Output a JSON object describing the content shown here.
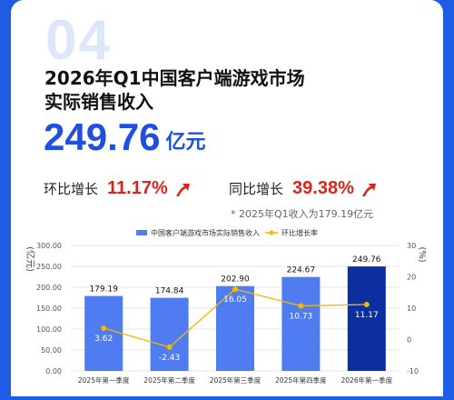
{
  "badge_number": "04",
  "title_line1": "2026年Q1中国客户端游戏市场",
  "title_line2": "实际销售收入",
  "headline_value": "249.76",
  "headline_unit": "亿元",
  "qoq": {
    "label": "环比增长",
    "value": "11.17%"
  },
  "yoy": {
    "label": "同比增长",
    "value": "39.38%"
  },
  "note": "* 2025年Q1收入为179.19亿元",
  "colors": {
    "background": "#1f5ce6",
    "accent": "#1f4fe0",
    "bar": "#4f7cf0",
    "bar_highlight": "#0c2fa0",
    "line": "#f5b800",
    "growth": "#d7261e"
  },
  "chart_data": {
    "type": "bar",
    "categories": [
      "2025年第一季度",
      "2025年第二季度",
      "2025年第三季度",
      "2025年第四季度",
      "2026年第一季度"
    ],
    "series": [
      {
        "name": "中国客户端游戏市场实际销售收入",
        "type": "bar",
        "axis": "left",
        "values": [
          179.19,
          174.84,
          202.9,
          224.67,
          249.76
        ]
      },
      {
        "name": "环比增长率",
        "type": "line",
        "axis": "right",
        "values": [
          3.62,
          -2.43,
          16.05,
          10.73,
          11.17
        ]
      }
    ],
    "left_axis": {
      "label": "亿元",
      "ticks": [
        "300.00",
        "250.00",
        "200.00",
        "150.00",
        "100.00",
        "50.00",
        "0.00"
      ],
      "ylim": [
        0,
        300
      ]
    },
    "right_axis": {
      "label": "%",
      "ticks": [
        "30",
        "20",
        "10",
        "0",
        "-10"
      ],
      "ylim": [
        -10,
        30
      ]
    },
    "legend_position": "top-center",
    "grid": true
  }
}
